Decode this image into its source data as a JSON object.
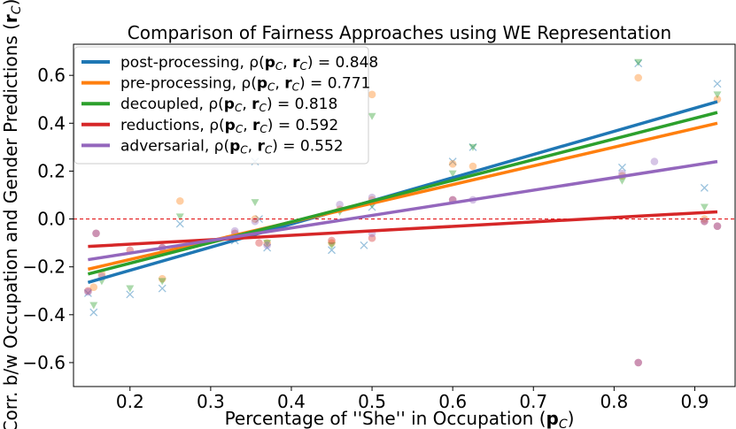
{
  "chart_data": {
    "type": "scatter",
    "title": "Comparison of Fairness Approaches using WE Representation",
    "xlabel": "Percentage of ''She'' in Occupation (p_C)",
    "xlabel_parts": [
      "Percentage of ''She'' in Occupation (",
      "p",
      "C",
      ")"
    ],
    "ylabel": "Corr. b/w Occupation and Gender Predictions (r_C)",
    "ylabel_parts": [
      "Corr. b/w Occupation and Gender Predictions (",
      "r",
      "C",
      ")"
    ],
    "xlim": [
      0.13,
      0.95
    ],
    "ylim": [
      -0.7,
      0.73
    ],
    "x_ticks": [
      0.2,
      0.3,
      0.4,
      0.5,
      0.6,
      0.7,
      0.8,
      0.9
    ],
    "x_tick_labels": [
      "0.2",
      "0.3",
      "0.4",
      "0.5",
      "0.6",
      "0.7",
      "0.8",
      "0.9"
    ],
    "y_ticks": [
      -0.6,
      -0.4,
      -0.2,
      0.0,
      0.2,
      0.4,
      0.6
    ],
    "y_tick_labels": [
      "−0.6",
      "−0.4",
      "−0.2",
      "0.0",
      "0.2",
      "0.4",
      "0.6"
    ],
    "reference_line": {
      "y": 0.0,
      "color": "#e31a1c",
      "style": "dashed"
    },
    "grid": false,
    "legend_position": "upper-left",
    "series": [
      {
        "name": "post-processing",
        "rho": "0.848",
        "color": "#1f77b4",
        "marker": "x",
        "line": [
          [
            0.148,
            -0.265
          ],
          [
            0.928,
            0.49
          ]
        ],
        "points": [
          [
            0.148,
            -0.31
          ],
          [
            0.155,
            -0.39
          ],
          [
            0.2,
            -0.315
          ],
          [
            0.24,
            -0.29
          ],
          [
            0.262,
            -0.02
          ],
          [
            0.33,
            -0.09
          ],
          [
            0.355,
            0.24
          ],
          [
            0.36,
            0.0
          ],
          [
            0.37,
            -0.12
          ],
          [
            0.45,
            -0.13
          ],
          [
            0.49,
            -0.11
          ],
          [
            0.5,
            0.05
          ],
          [
            0.6,
            0.24
          ],
          [
            0.625,
            0.3
          ],
          [
            0.81,
            0.215
          ],
          [
            0.83,
            0.65
          ],
          [
            0.912,
            0.13
          ],
          [
            0.928,
            0.565
          ]
        ]
      },
      {
        "name": "pre-processing",
        "rho": "0.771",
        "color": "#ff7f0e",
        "marker": "o",
        "line": [
          [
            0.148,
            -0.21
          ],
          [
            0.928,
            0.4
          ]
        ],
        "points": [
          [
            0.155,
            -0.285
          ],
          [
            0.165,
            -0.23
          ],
          [
            0.24,
            -0.25
          ],
          [
            0.262,
            0.075
          ],
          [
            0.355,
            0.0
          ],
          [
            0.37,
            -0.1
          ],
          [
            0.45,
            -0.1
          ],
          [
            0.46,
            0.04
          ],
          [
            0.5,
            0.52
          ],
          [
            0.5,
            0.08
          ],
          [
            0.6,
            0.23
          ],
          [
            0.625,
            0.22
          ],
          [
            0.81,
            0.18
          ],
          [
            0.83,
            0.59
          ],
          [
            0.912,
            0.0
          ],
          [
            0.928,
            0.5
          ]
        ]
      },
      {
        "name": "decoupled",
        "rho": "0.818",
        "color": "#2ca02c",
        "marker": "v",
        "line": [
          [
            0.148,
            -0.23
          ],
          [
            0.928,
            0.445
          ]
        ],
        "points": [
          [
            0.155,
            -0.36
          ],
          [
            0.165,
            -0.26
          ],
          [
            0.2,
            -0.29
          ],
          [
            0.24,
            -0.26
          ],
          [
            0.262,
            0.01
          ],
          [
            0.33,
            -0.08
          ],
          [
            0.355,
            0.07
          ],
          [
            0.37,
            -0.1
          ],
          [
            0.45,
            -0.11
          ],
          [
            0.46,
            0.03
          ],
          [
            0.5,
            0.43
          ],
          [
            0.5,
            0.06
          ],
          [
            0.6,
            0.19
          ],
          [
            0.625,
            0.3
          ],
          [
            0.81,
            0.16
          ],
          [
            0.83,
            0.655
          ],
          [
            0.912,
            0.05
          ],
          [
            0.928,
            0.52
          ]
        ]
      },
      {
        "name": "reductions",
        "rho": "0.592",
        "color": "#d62728",
        "marker": "o",
        "line": [
          [
            0.148,
            -0.115
          ],
          [
            0.928,
            0.03
          ]
        ],
        "points": [
          [
            0.148,
            -0.3
          ],
          [
            0.158,
            -0.06
          ],
          [
            0.2,
            -0.13
          ],
          [
            0.24,
            -0.12
          ],
          [
            0.33,
            -0.06
          ],
          [
            0.36,
            -0.1
          ],
          [
            0.45,
            -0.09
          ],
          [
            0.5,
            -0.08
          ],
          [
            0.6,
            0.08
          ],
          [
            0.83,
            -0.6
          ],
          [
            0.912,
            -0.01
          ],
          [
            0.928,
            -0.03
          ]
        ]
      },
      {
        "name": "adversarial",
        "rho": "0.552",
        "color": "#9467bd",
        "marker": "o",
        "line": [
          [
            0.148,
            -0.17
          ],
          [
            0.928,
            0.24
          ]
        ],
        "points": [
          [
            0.148,
            -0.305
          ],
          [
            0.158,
            -0.06
          ],
          [
            0.165,
            -0.24
          ],
          [
            0.24,
            -0.12
          ],
          [
            0.33,
            -0.05
          ],
          [
            0.355,
            -0.01
          ],
          [
            0.37,
            -0.11
          ],
          [
            0.46,
            0.06
          ],
          [
            0.5,
            0.09
          ],
          [
            0.5,
            -0.06
          ],
          [
            0.6,
            0.08
          ],
          [
            0.625,
            0.08
          ],
          [
            0.81,
            0.19
          ],
          [
            0.83,
            -0.6
          ],
          [
            0.85,
            0.24
          ],
          [
            0.912,
            -0.01
          ],
          [
            0.928,
            -0.03
          ]
        ]
      }
    ]
  }
}
